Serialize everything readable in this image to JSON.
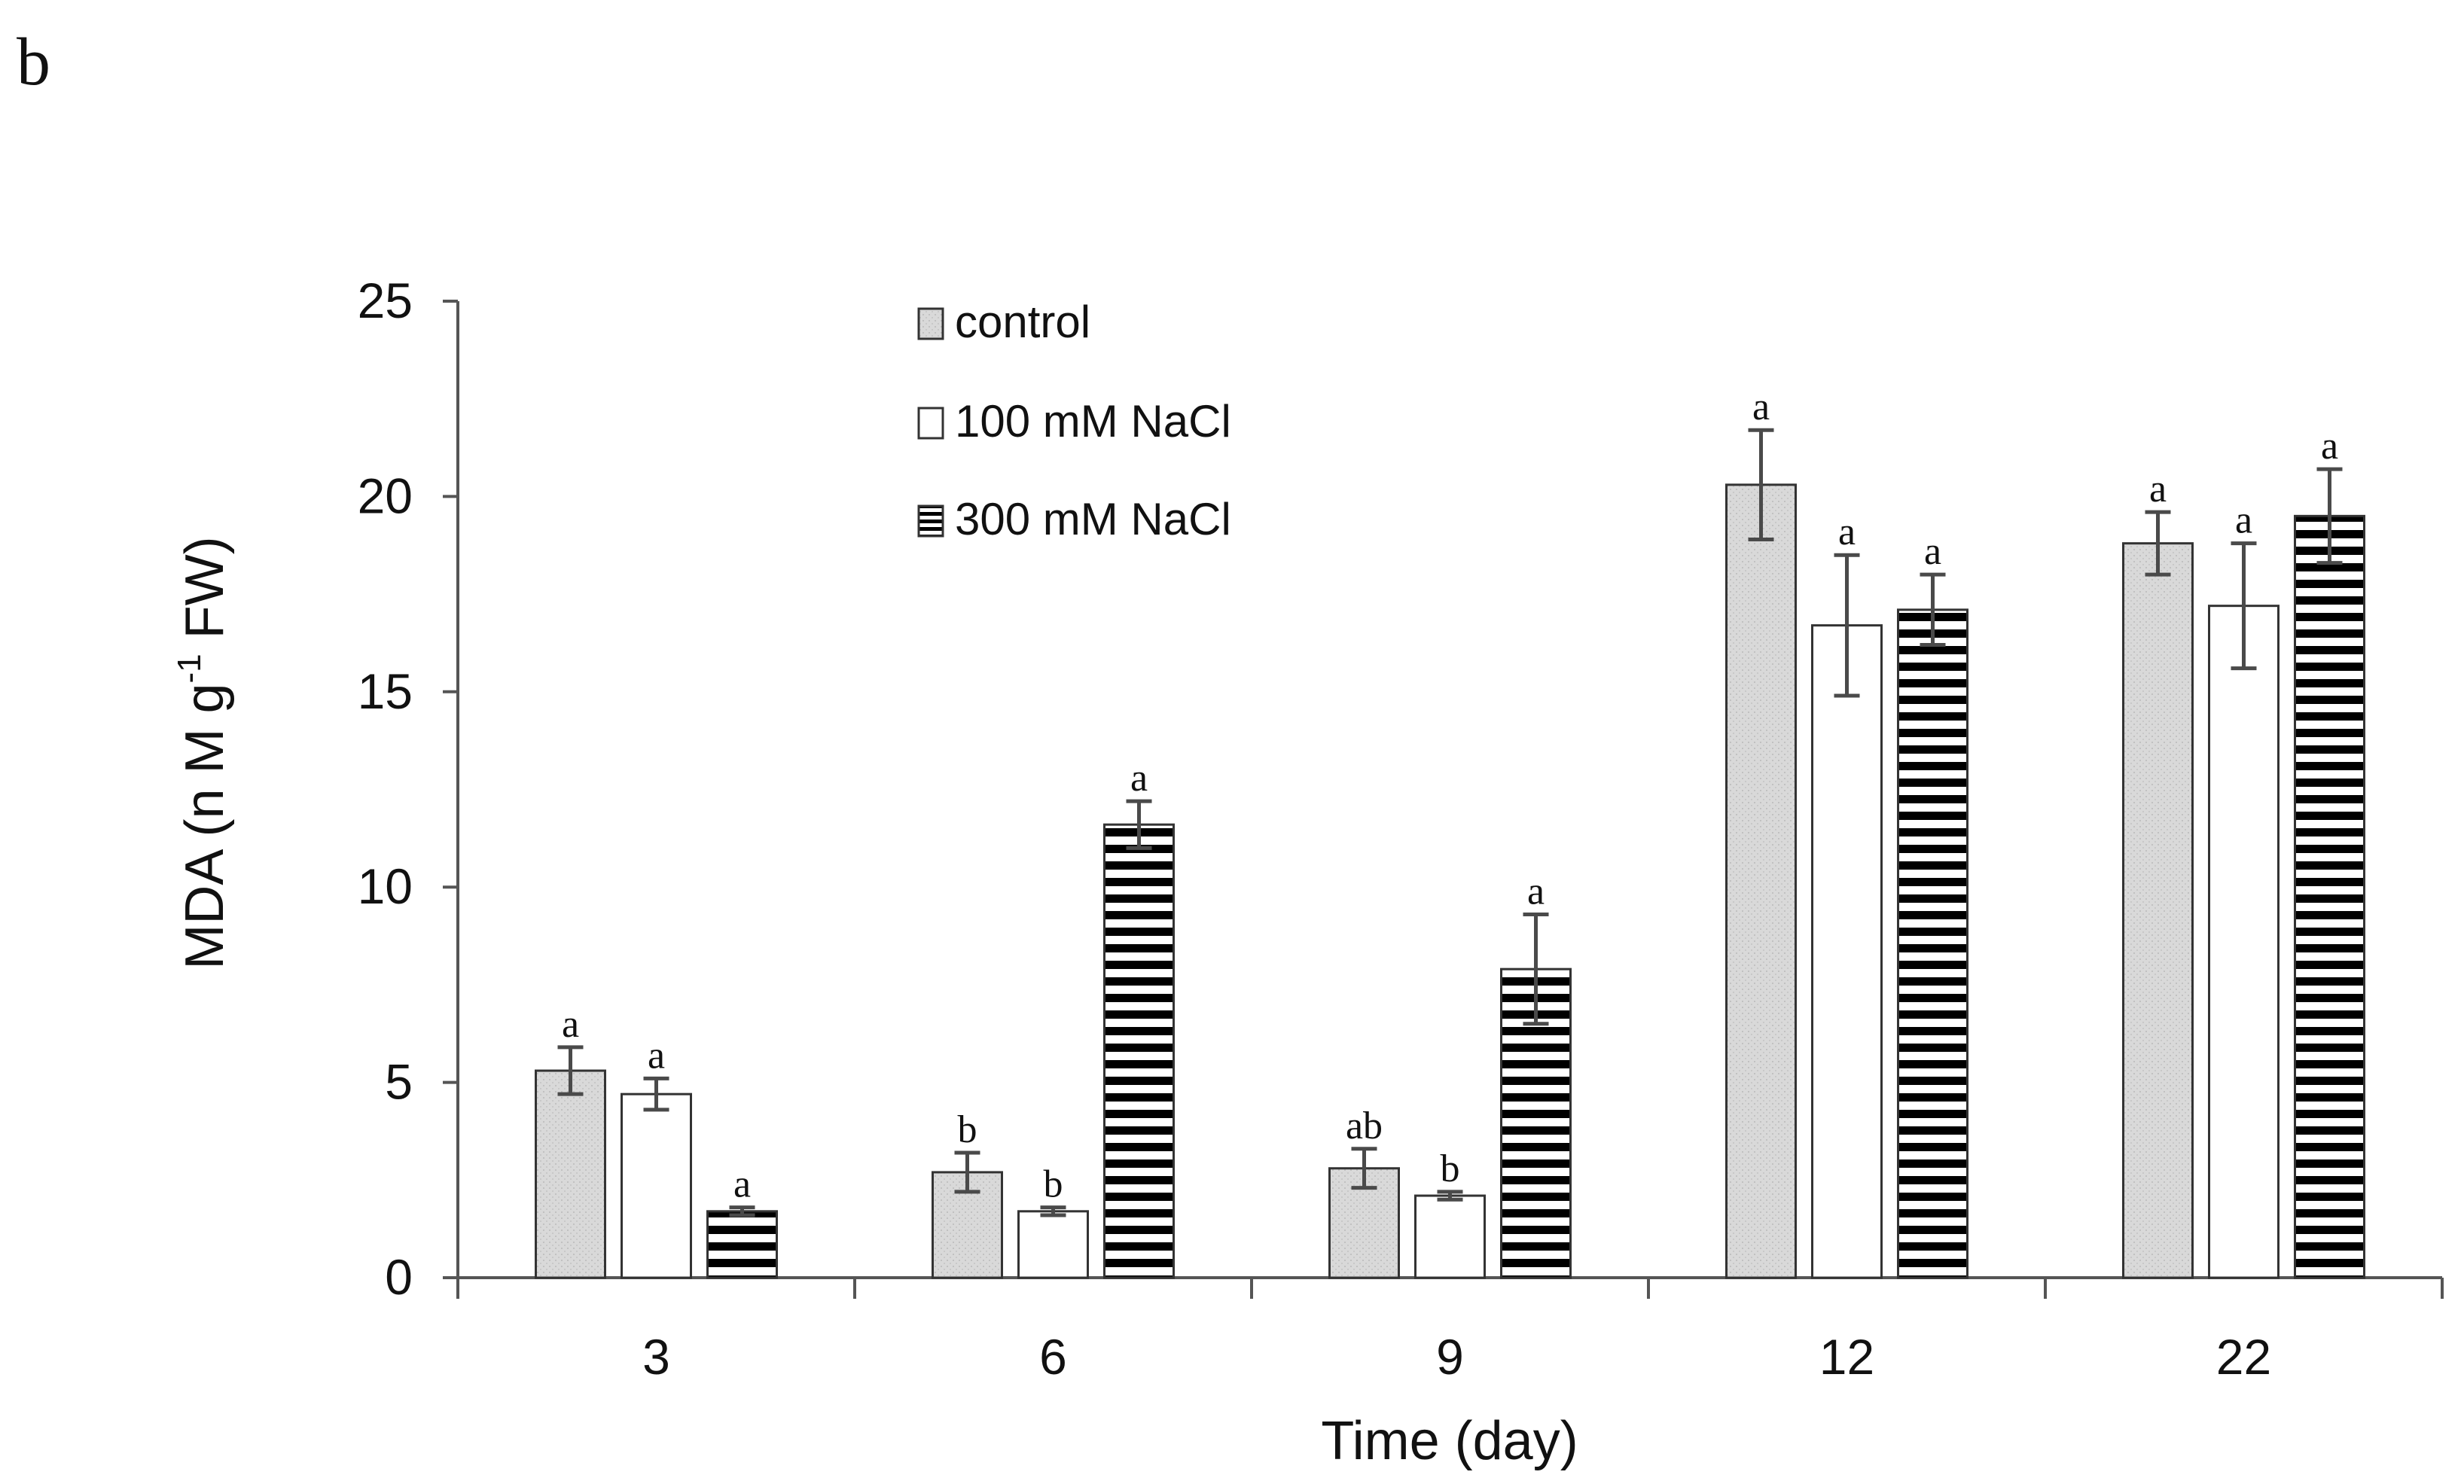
{
  "panel_label": "b",
  "colors": {
    "control_fill": "#d7d7d7",
    "nacl100_fill": "#ffffff",
    "nacl300_stripe": "#000000",
    "axis": "#555555",
    "error_bar": "#4a4a4a",
    "text": "#111111"
  },
  "chart_data": {
    "type": "bar",
    "title": "",
    "xlabel": "Time (day)",
    "ylabel_main": "MDA (n M g",
    "ylabel_sup": "-1",
    "ylabel_end": " FW)",
    "ylim": [
      0,
      25
    ],
    "yticks": [
      "0",
      "5",
      "10",
      "15",
      "20",
      "25"
    ],
    "categories": [
      "3",
      "6",
      "9",
      "12",
      "22"
    ],
    "legend_position": "top-center",
    "series": [
      {
        "name": "control",
        "pattern": "dotted-gray",
        "values": [
          5.3,
          2.7,
          2.8,
          20.3,
          18.8
        ],
        "errors": [
          0.6,
          0.5,
          0.5,
          1.4,
          0.8
        ],
        "letters": [
          "a",
          "b",
          "ab",
          "a",
          "a"
        ]
      },
      {
        "name": "100 mM NaCl",
        "pattern": "white",
        "values": [
          4.7,
          1.7,
          2.1,
          16.7,
          17.2
        ],
        "errors": [
          0.4,
          0.1,
          0.1,
          1.8,
          1.6
        ],
        "letters": [
          "a",
          "b",
          "b",
          "a",
          "a"
        ]
      },
      {
        "name": "300 mM NaCl",
        "pattern": "horizontal-stripes",
        "values": [
          1.7,
          11.6,
          7.9,
          17.1,
          19.5
        ],
        "errors": [
          0.1,
          0.6,
          1.4,
          0.9,
          1.2
        ],
        "letters": [
          "a",
          "a",
          "a",
          "a",
          "a"
        ]
      }
    ]
  }
}
